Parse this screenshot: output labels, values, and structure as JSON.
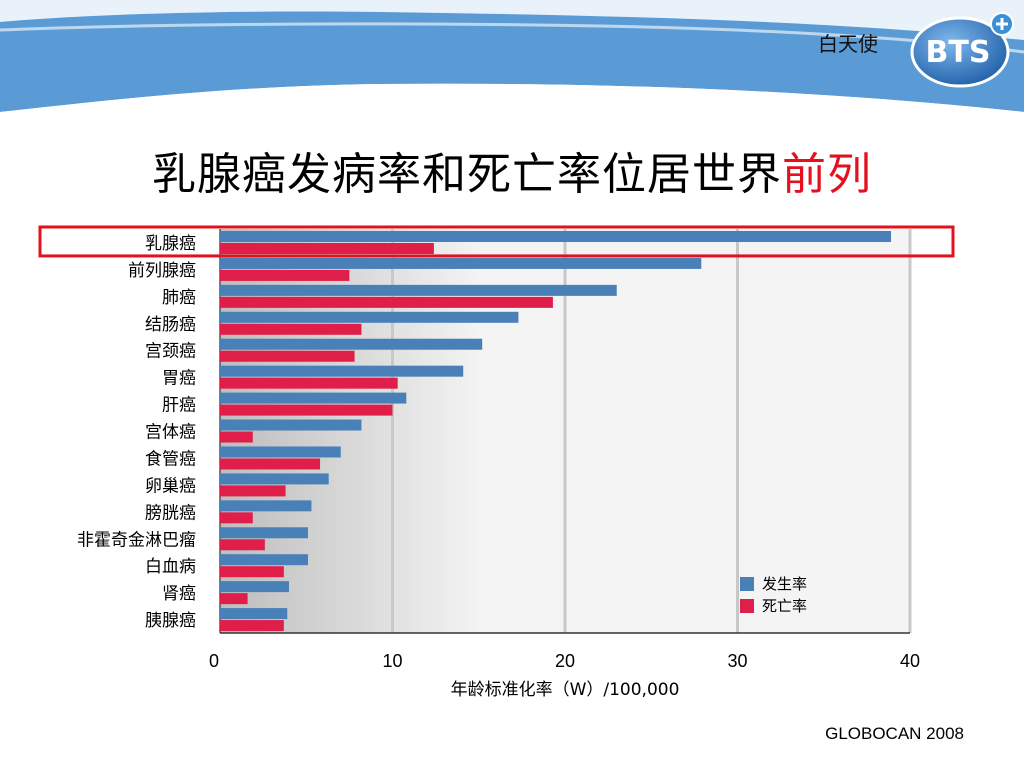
{
  "header": {
    "brand_name": "白天使",
    "logo_text": "BTS",
    "title_main": "乳腺癌发病率和死亡率位居世界",
    "title_accent": "前列"
  },
  "source": "GLOBOCAN 2008",
  "colors": {
    "incidence": "#4a80b8",
    "mortality": "#e01e4a",
    "highlight": "#e3101e",
    "wave": "#5b9bd5"
  },
  "chart_data": {
    "type": "bar",
    "orientation": "horizontal",
    "categories": [
      "乳腺癌",
      "前列腺癌",
      "肺癌",
      "结肠癌",
      "宫颈癌",
      "胃癌",
      "肝癌",
      "宫体癌",
      "食管癌",
      "卵巢癌",
      "膀胱癌",
      "非霍奇金淋巴瘤",
      "白血病",
      "肾癌",
      "胰腺癌"
    ],
    "series": [
      {
        "name": "发生率",
        "values": [
          38.9,
          27.9,
          23.0,
          17.3,
          15.2,
          14.1,
          10.8,
          8.2,
          7.0,
          6.3,
          5.3,
          5.1,
          5.1,
          4.0,
          3.9
        ]
      },
      {
        "name": "死亡率",
        "values": [
          12.4,
          7.5,
          19.3,
          8.2,
          7.8,
          10.3,
          10.0,
          1.9,
          5.8,
          3.8,
          1.9,
          2.6,
          3.7,
          1.6,
          3.7
        ]
      }
    ],
    "xlabel": "年龄标准化率（W）/100,000",
    "xlim": [
      0,
      40
    ],
    "xticks": [
      0,
      10,
      20,
      30,
      40
    ],
    "highlighted_category": "乳腺癌",
    "legend_position": "bottom-right",
    "grid": true
  }
}
